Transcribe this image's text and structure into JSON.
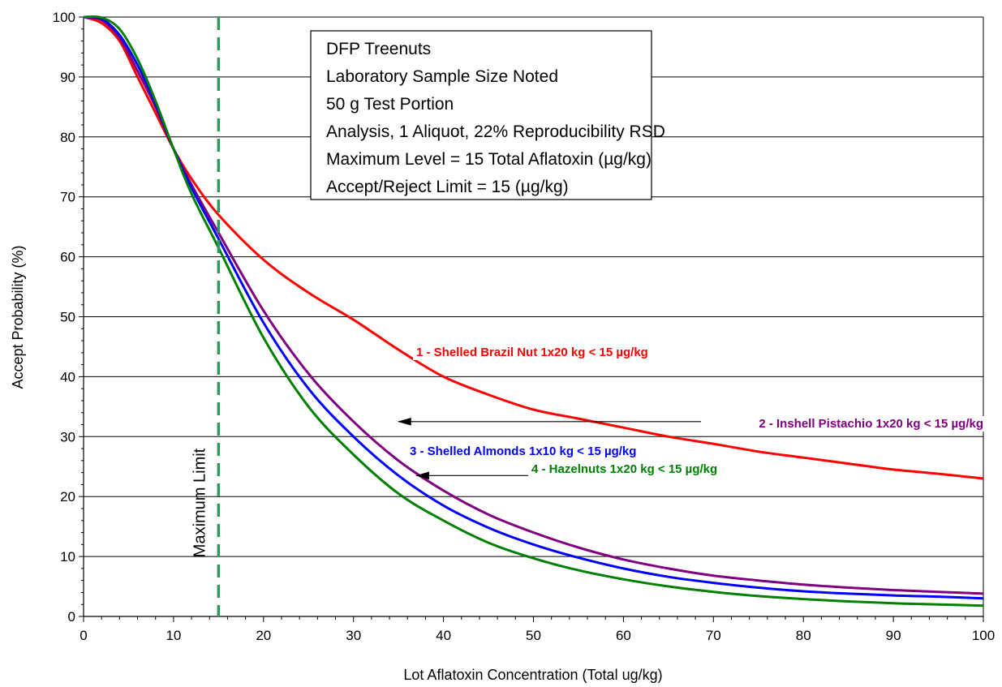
{
  "chart_data": {
    "type": "line",
    "xlabel": "Lot Aflatoxin Concentration (Total ug/kg)",
    "ylabel": "Accept Probability (%)",
    "xlim": [
      0,
      100
    ],
    "ylim": [
      0,
      100
    ],
    "x_ticks": [
      0,
      10,
      20,
      30,
      40,
      50,
      60,
      70,
      80,
      90,
      100
    ],
    "y_ticks": [
      0,
      10,
      20,
      30,
      40,
      50,
      60,
      70,
      80,
      90,
      100
    ],
    "grid": "horizontal",
    "info_box": [
      "DFP Treenuts",
      "Laboratory Sample Size Noted",
      "50 g Test Portion",
      "Analysis, 1 Aliquot, 22% Reproducibility RSD",
      "Maximum Level = 15 Total Aflatoxin (µg/kg)",
      "Accept/Reject Limit = 15 (µg/kg)"
    ],
    "vertical_line": {
      "x": 15,
      "label": "Maximum Limit",
      "color": "#2e9a5e"
    },
    "x": [
      0,
      2,
      4,
      6,
      8,
      10,
      12,
      15,
      20,
      25,
      30,
      35,
      40,
      45,
      50,
      55,
      60,
      65,
      70,
      75,
      80,
      85,
      90,
      95,
      100
    ],
    "series": [
      {
        "name": "1 - Shelled Brazil Nut 1x20 kg < 15 µg/kg",
        "color": "#ff0000",
        "values": [
          100,
          99,
          96,
          90,
          84,
          78,
          73,
          67,
          59.5,
          54,
          49.5,
          44.5,
          40,
          37,
          34.5,
          33,
          31.5,
          30,
          28.8,
          27.5,
          26.5,
          25.5,
          24.5,
          23.8,
          23
        ]
      },
      {
        "name": "2 - Inshell Pistachio 1x20 kg < 15 µg/kg",
        "color": "#800080",
        "values": [
          100,
          99.5,
          96.5,
          91,
          85,
          78,
          72,
          64,
          51,
          40.5,
          32.5,
          26,
          21,
          17,
          14,
          11.5,
          9.5,
          8,
          6.8,
          6,
          5.3,
          4.8,
          4.4,
          4.1,
          3.8
        ]
      },
      {
        "name": "3 - Shelled Almonds 1x10 kg < 15 µg/kg",
        "color": "#0000ff",
        "values": [
          100,
          99.7,
          97,
          92,
          85.5,
          78,
          71.5,
          63,
          49,
          38,
          30,
          23.5,
          18.5,
          14.8,
          12,
          9.8,
          8,
          6.6,
          5.6,
          4.8,
          4.2,
          3.8,
          3.5,
          3.3,
          3
        ]
      },
      {
        "name": "4 - Hazelnuts 1x20 kg < 15 µg/kg",
        "color": "#008000",
        "values": [
          100,
          99.9,
          98,
          93,
          86,
          78,
          70.5,
          61.5,
          46.5,
          35,
          27,
          20.5,
          16,
          12.3,
          9.7,
          7.7,
          6.2,
          5,
          4.1,
          3.4,
          2.9,
          2.5,
          2.2,
          2,
          1.8
        ]
      }
    ],
    "label_lines": {
      "series_2": {
        "arrow_from_x": 70,
        "arrow_to_x": 35,
        "arrow_y": 32.5
      },
      "series_4": {
        "arrow_from_x": 66,
        "arrow_to_x": 37,
        "arrow_y": 23.5
      }
    }
  }
}
